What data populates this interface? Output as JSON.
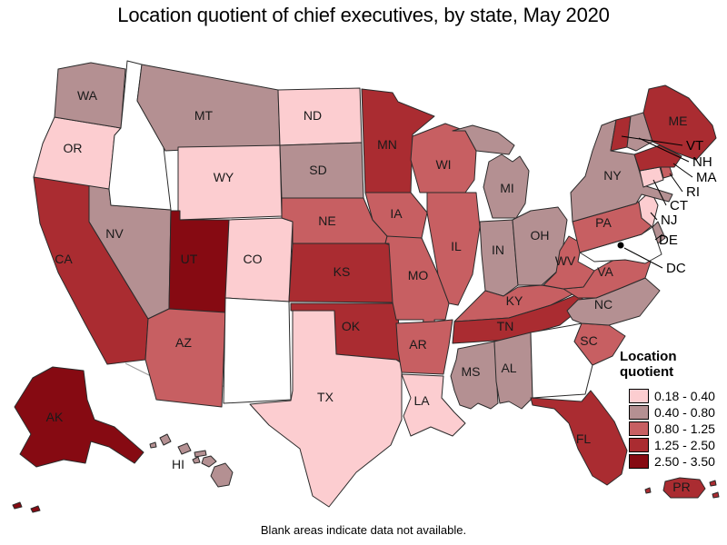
{
  "title": "Location quotient of chief executives, by state, May 2020",
  "footnote": "Blank areas indicate data not available.",
  "legend": {
    "title": "Location quotient",
    "no_data_color": "#ffffff",
    "classes": [
      {
        "label": "0.18 - 0.40",
        "color": "#fccdd0"
      },
      {
        "label": "0.40 - 0.80",
        "color": "#b49092"
      },
      {
        "label": "0.80 - 1.25",
        "color": "#c75f62"
      },
      {
        "label": "1.25 - 2.50",
        "color": "#aa2c31"
      },
      {
        "label": "2.50 - 3.50",
        "color": "#860a12"
      }
    ]
  },
  "map": {
    "border_color": "#2b2b2b",
    "dc_marker_color": "#000000",
    "callout_labels": [
      "VT",
      "NH",
      "MA",
      "RI",
      "CT",
      "NJ",
      "DE",
      "DC"
    ],
    "no_data_states": [
      "ID",
      "NM",
      "GA",
      "MD"
    ],
    "states": [
      {
        "abbr": "CA",
        "category": 3
      },
      {
        "abbr": "NV",
        "category": 1
      },
      {
        "abbr": "OR",
        "category": 0
      },
      {
        "abbr": "WA",
        "category": 1
      },
      {
        "abbr": "ID",
        "category": null
      },
      {
        "abbr": "MT",
        "category": 1
      },
      {
        "abbr": "WY",
        "category": 0
      },
      {
        "abbr": "UT",
        "category": 4
      },
      {
        "abbr": "CO",
        "category": 0
      },
      {
        "abbr": "AZ",
        "category": 2
      },
      {
        "abbr": "NM",
        "category": null
      },
      {
        "abbr": "ND",
        "category": 0
      },
      {
        "abbr": "SD",
        "category": 1
      },
      {
        "abbr": "NE",
        "category": 2
      },
      {
        "abbr": "KS",
        "category": 3
      },
      {
        "abbr": "OK",
        "category": 3
      },
      {
        "abbr": "TX",
        "category": 0
      },
      {
        "abbr": "MN",
        "category": 3
      },
      {
        "abbr": "IA",
        "category": 2
      },
      {
        "abbr": "MO",
        "category": 2
      },
      {
        "abbr": "AR",
        "category": 2
      },
      {
        "abbr": "LA",
        "category": 0
      },
      {
        "abbr": "WI",
        "category": 2
      },
      {
        "abbr": "IL",
        "category": 2
      },
      {
        "abbr": "MI",
        "category": 1
      },
      {
        "abbr": "IN",
        "category": 1
      },
      {
        "abbr": "OH",
        "category": 1
      },
      {
        "abbr": "KY",
        "category": 2
      },
      {
        "abbr": "TN",
        "category": 3
      },
      {
        "abbr": "MS",
        "category": 1
      },
      {
        "abbr": "AL",
        "category": 1
      },
      {
        "abbr": "GA",
        "category": null
      },
      {
        "abbr": "FL",
        "category": 3
      },
      {
        "abbr": "SC",
        "category": 2
      },
      {
        "abbr": "NC",
        "category": 1
      },
      {
        "abbr": "VA",
        "category": 2
      },
      {
        "abbr": "WV",
        "category": 2
      },
      {
        "abbr": "MD",
        "category": null
      },
      {
        "abbr": "DE",
        "category": 1
      },
      {
        "abbr": "PA",
        "category": 2
      },
      {
        "abbr": "NJ",
        "category": 0
      },
      {
        "abbr": "NY",
        "category": 1
      },
      {
        "abbr": "CT",
        "category": 0
      },
      {
        "abbr": "RI",
        "category": 2
      },
      {
        "abbr": "MA",
        "category": 3
      },
      {
        "abbr": "VT",
        "category": 3
      },
      {
        "abbr": "NH",
        "category": 1
      },
      {
        "abbr": "ME",
        "category": 3
      },
      {
        "abbr": "AK",
        "category": 4
      },
      {
        "abbr": "HI",
        "category": 1
      },
      {
        "abbr": "PR",
        "category": 3
      }
    ],
    "dc": {
      "label": "DC"
    }
  }
}
